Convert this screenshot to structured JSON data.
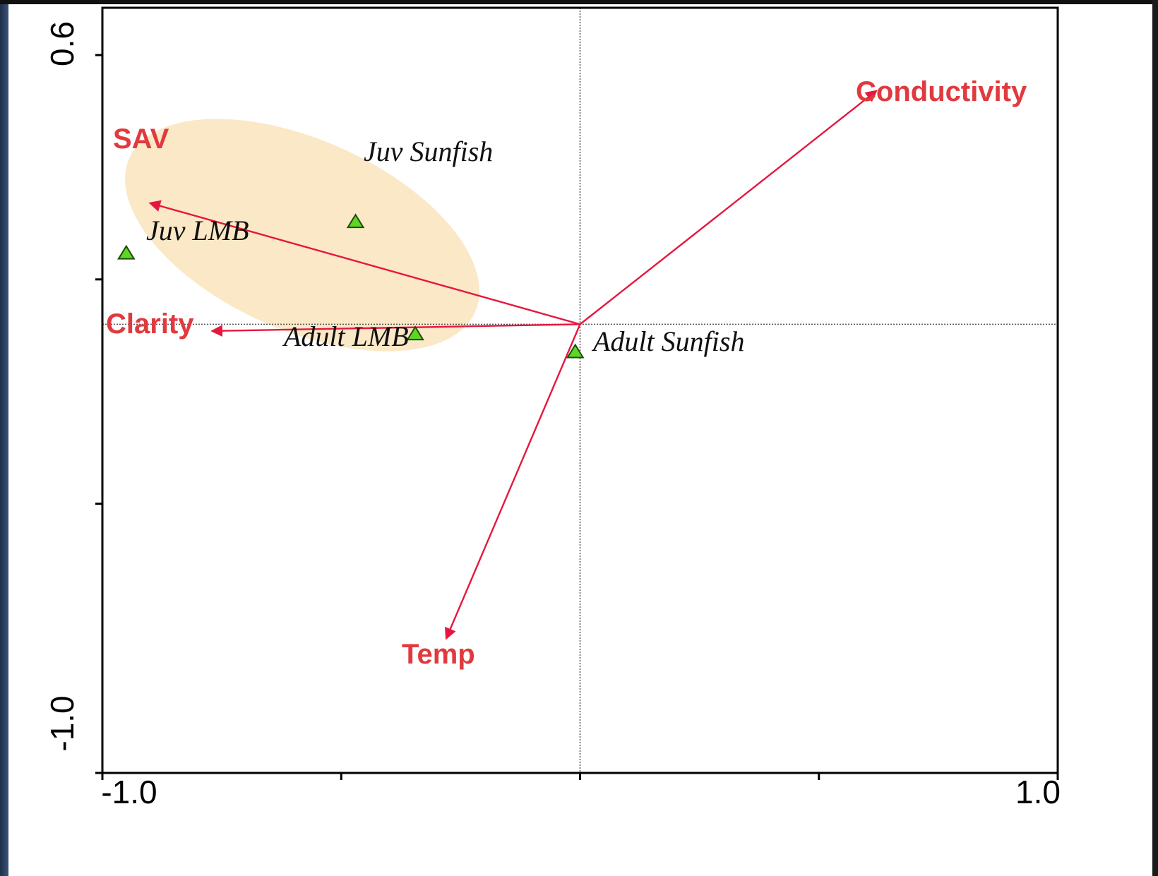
{
  "colors": {
    "arrow": "#e5173f",
    "env_label": "#e03a3e",
    "marker_fill": "#5fd626",
    "marker_stroke": "#1e4d0a",
    "ellipse": "#fbe8c6",
    "axis": "#000000",
    "gridline": "#555555"
  },
  "chart_data": {
    "type": "scatter",
    "subtype": "ordination biplot (species points with environmental variable arrows)",
    "title": "",
    "xlabel": "",
    "ylabel": "",
    "xlim": [
      -1.0,
      1.0
    ],
    "ylim": [
      -1.0,
      0.6
    ],
    "x_tick_labels": [
      "-1.0",
      "1.0"
    ],
    "y_tick_labels": [
      "0.6",
      "-1.0"
    ],
    "x_ticks": [
      -1.0,
      -0.5,
      0.0,
      0.5,
      1.0
    ],
    "y_ticks": [
      0.6,
      0.1,
      -0.4,
      -1.0
    ],
    "grid": false,
    "zero_reference_lines": true,
    "species": [
      {
        "name": "Juv Sunfish",
        "x": -0.47,
        "y": 0.23
      },
      {
        "name": "Juv LMB",
        "x": -0.95,
        "y": 0.16
      },
      {
        "name": "Adult LMB",
        "x": -0.345,
        "y": -0.02
      },
      {
        "name": "Adult Sunfish",
        "x": -0.01,
        "y": -0.06
      }
    ],
    "environmental_vectors": [
      {
        "name": "Conductivity",
        "x": 0.62,
        "y": 0.52
      },
      {
        "name": "SAV",
        "x": -0.9,
        "y": 0.27
      },
      {
        "name": "Clarity",
        "x": -0.77,
        "y": -0.015
      },
      {
        "name": "Temp",
        "x": -0.28,
        "y": -0.7
      }
    ],
    "highlighted_group": [
      "Juv Sunfish",
      "Juv LMB",
      "Adult LMB"
    ]
  }
}
